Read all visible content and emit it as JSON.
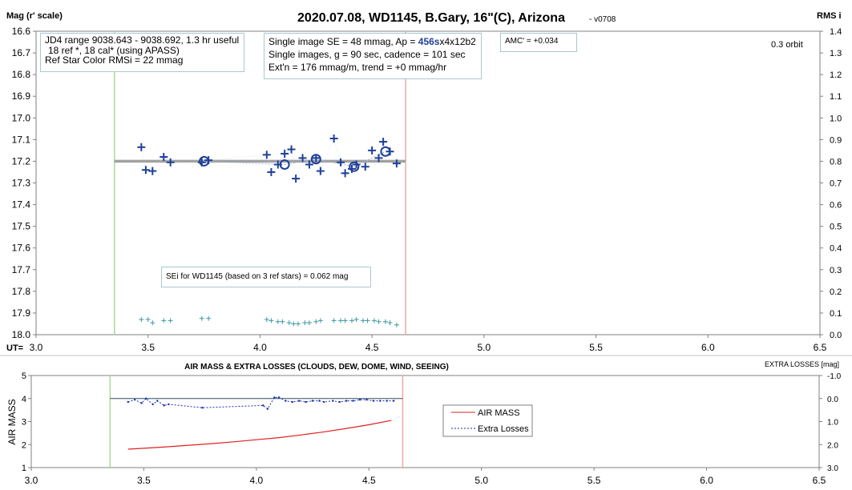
{
  "top": {
    "title": "2020.07.08, WD1145, B.Gary, 16\"(C), Arizona",
    "version": "- v0708",
    "y_left_label": "Mag (r' scale)",
    "y_right_label": "RMS i",
    "x_label": "UT=",
    "orbit_label": "0.3 orbit",
    "amc_label": "AMC' = +0.034",
    "info_left": {
      "line1": "JD4 range 9038.643 - 9038.692, 1.3 hr useful",
      "line2": "18 ref *, 18 cal* (using APASS)",
      "line3": "Ref Star Color RMSi = 22 mmag"
    },
    "info_mid": {
      "line1_prefix": "Single image SE = 48 mmag, Ap = ",
      "line1_bold": "456s",
      "line1_suffix": "x4x12b2",
      "line2": "Single images, g = 90 sec, cadence = 101 sec",
      "line3": "Ext'n = 176 mmag/m, trend = +0 mmag/hr"
    },
    "sei_label": "SEi for WD1145 (based on 3 ref stars) = 0.062 mag"
  },
  "bottom": {
    "title": "AIR MASS & EXTRA LOSSES (CLOUDS, DEW, DOME, WIND, SEEING)",
    "y_left_label": "AIR MASS",
    "y_right_label": "EXTRA LOSSES [mag]",
    "legend": {
      "airmass": "AIR MASS",
      "extra": "Extra Losses"
    }
  },
  "colors": {
    "points": "#1f3f99",
    "rms": "#3d9aa0",
    "model": "#a0a0a0",
    "connector": "#9fb0dd",
    "start_line": "#a9dc91",
    "end_line": "#f2a7a7",
    "airmass": "#e02020",
    "extra": "#1a2fb0",
    "zero_line": "#2f4f5f",
    "axis": "#808080"
  },
  "chart_data": [
    {
      "type": "scatter",
      "x_range": [
        3.0,
        6.5
      ],
      "y_range": [
        16.6,
        18.0
      ],
      "y_reversed": true,
      "y2_range": [
        0.0,
        1.4
      ],
      "x_ticks": [
        "3.0",
        "3.5",
        "4.0",
        "4.5",
        "5.0",
        "5.5",
        "6.0",
        "6.5"
      ],
      "y_ticks": [
        "16.6",
        "16.7",
        "16.8",
        "16.9",
        "17.0",
        "17.1",
        "17.2",
        "17.3",
        "17.4",
        "17.5",
        "17.6",
        "17.7",
        "17.8",
        "17.9",
        "18.0"
      ],
      "y2_ticks": [
        "1.4",
        "1.3",
        "1.2",
        "1.1",
        "1.0",
        "0.9",
        "0.8",
        "0.7",
        "0.6",
        "0.5",
        "0.4",
        "0.3",
        "0.2",
        "0.1",
        "0.0"
      ],
      "start_ut": 3.35,
      "end_ut": 4.65,
      "model_mag": 17.2,
      "series": [
        {
          "name": "single images",
          "marker": "plus",
          "points": [
            {
              "x": 3.47,
              "y": 17.135
            },
            {
              "x": 3.49,
              "y": 17.24
            },
            {
              "x": 3.52,
              "y": 17.245
            },
            {
              "x": 3.57,
              "y": 17.18
            },
            {
              "x": 3.6,
              "y": 17.205
            },
            {
              "x": 3.74,
              "y": 17.205
            },
            {
              "x": 3.77,
              "y": 17.195
            },
            {
              "x": 4.03,
              "y": 17.17
            },
            {
              "x": 4.05,
              "y": 17.25
            },
            {
              "x": 4.08,
              "y": 17.215
            },
            {
              "x": 4.11,
              "y": 17.165
            },
            {
              "x": 4.14,
              "y": 17.145
            },
            {
              "x": 4.16,
              "y": 17.28
            },
            {
              "x": 4.19,
              "y": 17.185
            },
            {
              "x": 4.22,
              "y": 17.215
            },
            {
              "x": 4.25,
              "y": 17.185
            },
            {
              "x": 4.27,
              "y": 17.245
            },
            {
              "x": 4.33,
              "y": 17.095
            },
            {
              "x": 4.36,
              "y": 17.205
            },
            {
              "x": 4.38,
              "y": 17.255
            },
            {
              "x": 4.41,
              "y": 17.235
            },
            {
              "x": 4.43,
              "y": 17.215
            },
            {
              "x": 4.47,
              "y": 17.225
            },
            {
              "x": 4.5,
              "y": 17.15
            },
            {
              "x": 4.53,
              "y": 17.185
            },
            {
              "x": 4.55,
              "y": 17.11
            },
            {
              "x": 4.58,
              "y": 17.155
            },
            {
              "x": 4.61,
              "y": 17.21
            }
          ]
        },
        {
          "name": "averages",
          "marker": "circle",
          "points": [
            {
              "x": 3.75,
              "y": 17.2
            },
            {
              "x": 4.11,
              "y": 17.215
            },
            {
              "x": 4.25,
              "y": 17.19
            },
            {
              "x": 4.42,
              "y": 17.225
            },
            {
              "x": 4.56,
              "y": 17.155
            }
          ]
        },
        {
          "name": "RMS",
          "marker": "small-plus",
          "axis": "y2",
          "points": [
            {
              "x": 3.47,
              "y": 0.07
            },
            {
              "x": 3.5,
              "y": 0.07
            },
            {
              "x": 3.52,
              "y": 0.055
            },
            {
              "x": 3.57,
              "y": 0.065
            },
            {
              "x": 3.6,
              "y": 0.065
            },
            {
              "x": 3.74,
              "y": 0.075
            },
            {
              "x": 3.77,
              "y": 0.075
            },
            {
              "x": 4.03,
              "y": 0.07
            },
            {
              "x": 4.05,
              "y": 0.065
            },
            {
              "x": 4.08,
              "y": 0.06
            },
            {
              "x": 4.1,
              "y": 0.06
            },
            {
              "x": 4.13,
              "y": 0.055
            },
            {
              "x": 4.15,
              "y": 0.05
            },
            {
              "x": 4.17,
              "y": 0.05
            },
            {
              "x": 4.2,
              "y": 0.055
            },
            {
              "x": 4.22,
              "y": 0.055
            },
            {
              "x": 4.25,
              "y": 0.06
            },
            {
              "x": 4.27,
              "y": 0.065
            },
            {
              "x": 4.33,
              "y": 0.065
            },
            {
              "x": 4.36,
              "y": 0.065
            },
            {
              "x": 4.38,
              "y": 0.065
            },
            {
              "x": 4.41,
              "y": 0.065
            },
            {
              "x": 4.43,
              "y": 0.07
            },
            {
              "x": 4.46,
              "y": 0.065
            },
            {
              "x": 4.48,
              "y": 0.065
            },
            {
              "x": 4.51,
              "y": 0.065
            },
            {
              "x": 4.53,
              "y": 0.06
            },
            {
              "x": 4.56,
              "y": 0.06
            },
            {
              "x": 4.58,
              "y": 0.055
            },
            {
              "x": 4.61,
              "y": 0.045
            }
          ]
        }
      ]
    },
    {
      "type": "line",
      "x_range": [
        3.0,
        6.5
      ],
      "y_range": [
        1,
        5
      ],
      "y2_range": [
        3.0,
        -1.0
      ],
      "x_ticks": [
        "3.0",
        "3.5",
        "4.0",
        "4.5",
        "5.0",
        "5.5",
        "6.0",
        "6.5"
      ],
      "y_ticks": [
        "5",
        "4",
        "3",
        "2",
        "1"
      ],
      "y2_ticks": [
        "-1.0",
        "0.0",
        "1.0",
        "2.0",
        "3.0"
      ],
      "start_ut": 3.35,
      "end_ut": 4.65,
      "extra_zero": 0.0,
      "series": [
        {
          "name": "AIR MASS",
          "axis": "y",
          "x": [
            3.43,
            3.5,
            3.6,
            3.7,
            3.8,
            3.9,
            4.0,
            4.1,
            4.2,
            4.3,
            4.4,
            4.5,
            4.6
          ],
          "y": [
            1.8,
            1.84,
            1.9,
            1.97,
            2.04,
            2.12,
            2.21,
            2.3,
            2.42,
            2.55,
            2.7,
            2.86,
            3.05
          ]
        },
        {
          "name": "Extra Losses",
          "axis": "y2",
          "x": [
            3.43,
            3.46,
            3.49,
            3.51,
            3.54,
            3.56,
            3.59,
            3.61,
            3.76,
            4.03,
            4.05,
            4.08,
            4.1,
            4.13,
            4.16,
            4.19,
            4.22,
            4.25,
            4.28,
            4.3,
            4.34,
            4.37,
            4.4,
            4.43,
            4.46,
            4.49,
            4.52,
            4.55,
            4.58,
            4.61
          ],
          "y": [
            0.15,
            0.05,
            0.2,
            0.0,
            0.25,
            0.1,
            0.3,
            0.25,
            0.4,
            0.3,
            0.45,
            -0.05,
            -0.05,
            0.1,
            0.15,
            0.1,
            0.15,
            0.1,
            0.1,
            0.15,
            0.1,
            0.15,
            0.1,
            0.1,
            0.05,
            0.05,
            0.1,
            0.1,
            0.1,
            0.1
          ]
        }
      ]
    }
  ]
}
